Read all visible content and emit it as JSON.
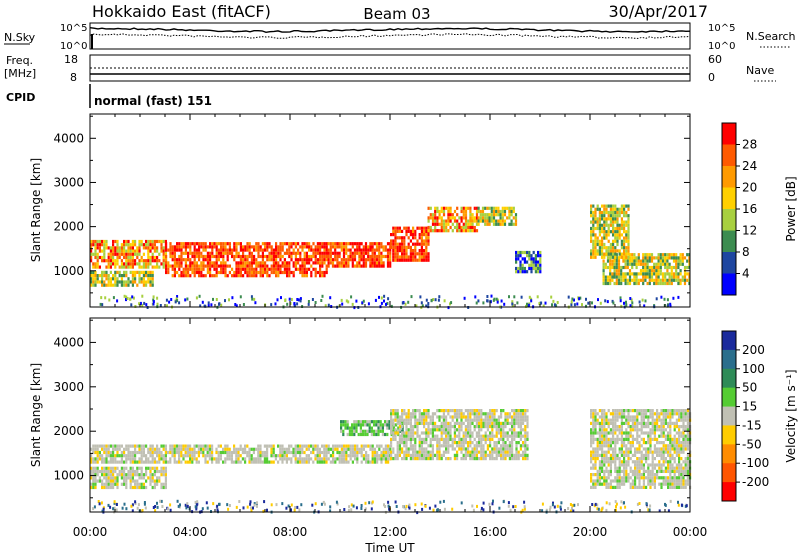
{
  "header": {
    "radar": "Hokkaido East (fitACF)",
    "beam": "Beam 03",
    "date": "30/Apr/2017"
  },
  "top_panels": {
    "nsky_label": "N.Sky",
    "nsky_ticks": [
      "10^5",
      "10^0"
    ],
    "nsearch_label": "N.Search",
    "nsearch_ticks": [
      "10^5",
      "10^0"
    ],
    "freq_label_1": "Freq.",
    "freq_label_2": "[MHz]",
    "freq_ticks": [
      "18",
      "8"
    ],
    "nave_label": "Nave",
    "nave_ticks": [
      "60",
      "0"
    ],
    "cpid_label": "CPID",
    "cpid_value": "normal (fast) 151"
  },
  "chart_data": [
    {
      "type": "heatmap",
      "name": "power",
      "ylabel": "Slant Range [km]",
      "ylim": [
        180,
        4550
      ],
      "yticks": [
        1000,
        2000,
        3000,
        4000
      ],
      "xlim": [
        0,
        24
      ],
      "xtick_labels": [
        "00:00",
        "04:00",
        "08:00",
        "12:00",
        "16:00",
        "20:00",
        "00:00"
      ],
      "colorbar": {
        "label": "Power [dB]",
        "ticks": [
          "28",
          "24",
          "20",
          "16",
          "12",
          "8",
          "4"
        ],
        "colors": [
          "#ff0000",
          "#ff5a00",
          "#ff9a00",
          "#ffd000",
          "#a8d040",
          "#3c8c50",
          "#1e46a0",
          "#0000ff"
        ],
        "side": "right"
      },
      "echo_regions": [
        {
          "t": [
            0.0,
            3.0
          ],
          "r": [
            1050,
            1700
          ],
          "level": "high"
        },
        {
          "t": [
            3.0,
            9.5
          ],
          "r": [
            900,
            1650
          ],
          "level": "very-high"
        },
        {
          "t": [
            9.5,
            12.0
          ],
          "r": [
            1100,
            1650
          ],
          "level": "very-high"
        },
        {
          "t": [
            12.0,
            13.5
          ],
          "r": [
            1250,
            2000
          ],
          "level": "very-high"
        },
        {
          "t": [
            13.5,
            15.5
          ],
          "r": [
            1900,
            2450
          ],
          "level": "high"
        },
        {
          "t": [
            15.5,
            17.0
          ],
          "r": [
            2050,
            2450
          ],
          "level": "medium"
        },
        {
          "t": [
            0.0,
            2.5
          ],
          "r": [
            700,
            1000
          ],
          "level": "medium"
        },
        {
          "t": [
            20.5,
            24.0
          ],
          "r": [
            700,
            1400
          ],
          "level": "medium"
        },
        {
          "t": [
            20.0,
            21.5
          ],
          "r": [
            1300,
            2500
          ],
          "level": "medium"
        },
        {
          "t": [
            17.0,
            18.0
          ],
          "r": [
            1000,
            1450
          ],
          "level": "low"
        }
      ]
    },
    {
      "type": "heatmap",
      "name": "velocity",
      "ylabel": "Slant Range [km]",
      "ylim": [
        180,
        4550
      ],
      "yticks": [
        1000,
        2000,
        3000,
        4000
      ],
      "xlim": [
        0,
        24
      ],
      "xtick_labels": [
        "00:00",
        "04:00",
        "08:00",
        "12:00",
        "16:00",
        "20:00",
        "00:00"
      ],
      "xlabel": "Time UT",
      "colorbar": {
        "label": "Velocity [m s⁻¹]",
        "ticks": [
          "200",
          "100",
          "50",
          "15",
          "-15",
          "-50",
          "-100",
          "-200"
        ],
        "colors": [
          "#1a2a9c",
          "#2a6e8c",
          "#2e8b57",
          "#55cc33",
          "#c0c0b4",
          "#ffcc00",
          "#ff8c00",
          "#ff5500",
          "#ff0000"
        ],
        "side": "right"
      },
      "echo_regions": [
        {
          "t": [
            0.0,
            12.0
          ],
          "r": [
            1300,
            1700
          ],
          "level": "ground"
        },
        {
          "t": [
            0.0,
            3.0
          ],
          "r": [
            700,
            1200
          ],
          "level": "ground"
        },
        {
          "t": [
            10.0,
            12.5
          ],
          "r": [
            1950,
            2250
          ],
          "level": "positive"
        },
        {
          "t": [
            12.0,
            17.5
          ],
          "r": [
            1400,
            2500
          ],
          "level": "ground"
        },
        {
          "t": [
            20.0,
            24.0
          ],
          "r": [
            700,
            2500
          ],
          "level": "ground"
        }
      ]
    }
  ]
}
